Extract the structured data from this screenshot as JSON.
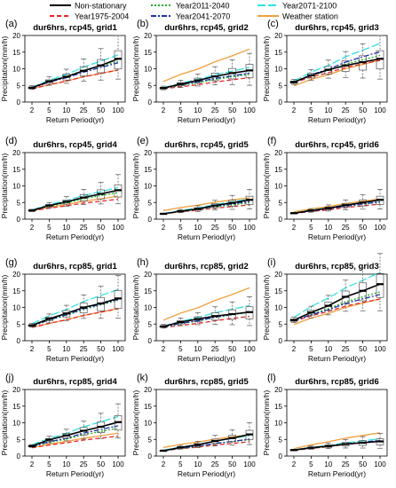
{
  "legend": [
    {
      "name": "Non-stationary",
      "color": "#000000",
      "dash": "solid"
    },
    {
      "name": "Year1975-2004",
      "color": "#e8252a",
      "dash": "dashed"
    },
    {
      "name": "Year2011-2040",
      "color": "#1fb21f",
      "dash": "dotted"
    },
    {
      "name": "Year2041-2070",
      "color": "#1a2fb0",
      "dash": "dashdot"
    },
    {
      "name": "Year2071-2100",
      "color": "#33e0e0",
      "dash": "longdash"
    },
    {
      "name": "Weather station",
      "color": "#f0a040",
      "dash": "solid"
    }
  ],
  "chart_data": [
    {
      "type": "line",
      "letter": "(a)",
      "title": "dur6hrs, rcp45, grid1",
      "xlabel": "Return Period(yr)",
      "ylabel": "Precipitation(mm/h)",
      "categories": [
        "2",
        "5",
        "10",
        "25",
        "50",
        "100"
      ],
      "ylim": [
        0,
        20
      ],
      "yticks": [
        0,
        5,
        10,
        15,
        20
      ],
      "series": [
        {
          "name": "Non-stationary",
          "values": [
            4.3,
            6.2,
            7.6,
            9.4,
            11.0,
            13.0
          ]
        },
        {
          "name": "Year1975-2004",
          "values": [
            4.0,
            5.2,
            6.3,
            7.6,
            8.6,
            9.6
          ]
        },
        {
          "name": "Year2011-2040",
          "values": [
            4.2,
            6.3,
            7.7,
            9.5,
            10.9,
            12.2
          ]
        },
        {
          "name": "Year2041-2070",
          "values": [
            4.2,
            6.0,
            7.3,
            9.0,
            10.4,
            11.8
          ]
        },
        {
          "name": "Year2071-2100",
          "values": [
            4.4,
            6.6,
            8.3,
            10.5,
            12.3,
            14.2
          ]
        },
        {
          "name": "Weather station",
          "values": [
            4.0,
            5.2,
            6.3,
            7.6,
            8.6,
            9.7
          ]
        }
      ]
    },
    {
      "type": "line",
      "letter": "(b)",
      "title": "dur6hrs, rcp45, grid2",
      "xlabel": "Return Period(yr)",
      "ylabel": "Precipitation(mm/h)",
      "categories": [
        "2",
        "5",
        "10",
        "25",
        "50",
        "100"
      ],
      "ylim": [
        0,
        20
      ],
      "yticks": [
        0,
        5,
        10,
        15,
        20
      ],
      "series": [
        {
          "name": "Non-stationary",
          "values": [
            4.2,
            5.4,
            6.5,
            7.7,
            8.7,
            9.5
          ]
        },
        {
          "name": "Year1975-2004",
          "values": [
            4.0,
            4.6,
            5.2,
            6.0,
            6.7,
            7.3
          ]
        },
        {
          "name": "Year2011-2040",
          "values": [
            4.1,
            5.0,
            5.8,
            6.8,
            7.6,
            8.3
          ]
        },
        {
          "name": "Year2041-2070",
          "values": [
            4.1,
            5.2,
            6.1,
            7.1,
            7.9,
            8.7
          ]
        },
        {
          "name": "Year2071-2100",
          "values": [
            4.3,
            5.6,
            6.8,
            8.2,
            9.3,
            10.4
          ]
        },
        {
          "name": "Weather station",
          "values": [
            6.2,
            8.3,
            9.9,
            12.1,
            13.9,
            15.9
          ]
        }
      ]
    },
    {
      "type": "line",
      "letter": "(c)",
      "title": "dur6hrs, rcp45, grid3",
      "xlabel": "Return Period(yr)",
      "ylabel": "Precipitation(mm/h)",
      "categories": [
        "2",
        "5",
        "10",
        "25",
        "50",
        "100"
      ],
      "ylim": [
        0,
        20
      ],
      "yticks": [
        0,
        5,
        10,
        15,
        20
      ],
      "series": [
        {
          "name": "Non-stationary",
          "values": [
            6.0,
            8.0,
            9.7,
            11.0,
            12.0,
            13.0
          ]
        },
        {
          "name": "Year1975-2004",
          "values": [
            5.8,
            7.5,
            8.8,
            10.4,
            11.5,
            12.5
          ]
        },
        {
          "name": "Year2011-2040",
          "values": [
            6.0,
            8.0,
            9.5,
            11.4,
            12.7,
            14.0
          ]
        },
        {
          "name": "Year2041-2070",
          "values": [
            6.0,
            8.2,
            9.9,
            12.0,
            13.6,
            15.1
          ]
        },
        {
          "name": "Year2071-2100",
          "values": [
            6.3,
            9.0,
            11.0,
            13.6,
            15.6,
            17.6
          ]
        },
        {
          "name": "Weather station",
          "values": [
            4.9,
            6.8,
            8.2,
            10.0,
            11.3,
            12.6
          ]
        }
      ]
    },
    {
      "type": "line",
      "letter": "(d)",
      "title": "dur6hrs, rcp45, grid4",
      "xlabel": "Return Period(yr)",
      "ylabel": "Precipitation(mm/h)",
      "categories": [
        "2",
        "5",
        "10",
        "25",
        "50",
        "100"
      ],
      "ylim": [
        0,
        20
      ],
      "yticks": [
        0,
        5,
        10,
        15,
        20
      ],
      "series": [
        {
          "name": "Non-stationary",
          "values": [
            2.6,
            4.1,
            5.2,
            6.5,
            7.6,
            8.7
          ]
        },
        {
          "name": "Year1975-2004",
          "values": [
            2.5,
            3.3,
            4.0,
            4.8,
            5.4,
            6.0
          ]
        },
        {
          "name": "Year2011-2040",
          "values": [
            2.7,
            3.9,
            4.9,
            6.1,
            7.1,
            8.0
          ]
        },
        {
          "name": "Year2041-2070",
          "values": [
            2.7,
            4.1,
            5.2,
            6.6,
            7.6,
            8.7
          ]
        },
        {
          "name": "Year2071-2100",
          "values": [
            2.8,
            4.4,
            5.6,
            7.1,
            8.3,
            9.5
          ]
        },
        {
          "name": "Weather station",
          "values": [
            2.5,
            3.6,
            4.4,
            5.4,
            6.1,
            6.9
          ]
        }
      ]
    },
    {
      "type": "line",
      "letter": "(e)",
      "title": "dur6hrs, rcp45, grid5",
      "xlabel": "Return Period(yr)",
      "ylabel": "Precipitation(mm/h)",
      "categories": [
        "2",
        "5",
        "10",
        "25",
        "50",
        "100"
      ],
      "ylim": [
        0,
        20
      ],
      "yticks": [
        0,
        5,
        10,
        15,
        20
      ],
      "series": [
        {
          "name": "Non-stationary",
          "values": [
            1.6,
            2.4,
            3.1,
            4.1,
            4.9,
            5.8
          ]
        },
        {
          "name": "Year1975-2004",
          "values": [
            1.6,
            2.2,
            2.7,
            3.3,
            3.8,
            4.3
          ]
        },
        {
          "name": "Year2011-2040",
          "values": [
            1.6,
            2.3,
            2.9,
            3.7,
            4.3,
            4.9
          ]
        },
        {
          "name": "Year2041-2070",
          "values": [
            1.6,
            2.4,
            3.0,
            3.9,
            4.6,
            5.3
          ]
        },
        {
          "name": "Year2071-2100",
          "values": [
            1.7,
            2.6,
            3.4,
            4.4,
            5.2,
            6.0
          ]
        },
        {
          "name": "Weather station",
          "values": [
            2.6,
            3.5,
            4.2,
            5.1,
            5.8,
            6.4
          ]
        }
      ]
    },
    {
      "type": "line",
      "letter": "(f)",
      "title": "dur6hrs, rcp45, grid6",
      "xlabel": "Return Period(yr)",
      "ylabel": "Precipitation(mm/h)",
      "categories": [
        "2",
        "5",
        "10",
        "25",
        "50",
        "100"
      ],
      "ylim": [
        0,
        20
      ],
      "yticks": [
        0,
        5,
        10,
        15,
        20
      ],
      "series": [
        {
          "name": "Non-stationary",
          "values": [
            1.8,
            2.6,
            3.3,
            4.2,
            5.0,
            5.8
          ]
        },
        {
          "name": "Year1975-2004",
          "values": [
            1.7,
            2.3,
            2.8,
            3.5,
            4.0,
            4.5
          ]
        },
        {
          "name": "Year2011-2040",
          "values": [
            1.8,
            2.5,
            3.1,
            3.9,
            4.5,
            5.1
          ]
        },
        {
          "name": "Year2041-2070",
          "values": [
            1.8,
            2.5,
            3.1,
            3.9,
            4.6,
            5.2
          ]
        },
        {
          "name": "Year2071-2100",
          "values": [
            1.9,
            2.7,
            3.4,
            4.3,
            5.0,
            5.7
          ]
        },
        {
          "name": "Weather station",
          "values": [
            2.2,
            3.1,
            3.8,
            4.7,
            5.4,
            6.1
          ]
        }
      ]
    },
    {
      "type": "line",
      "letter": "(g)",
      "title": "dur6hrs, rcp85, grid1",
      "xlabel": "Return Period(yr)",
      "ylabel": "Precipitation(mm/h)",
      "categories": [
        "2",
        "5",
        "10",
        "25",
        "50",
        "100"
      ],
      "ylim": [
        0,
        20
      ],
      "yticks": [
        0,
        5,
        10,
        15,
        20
      ],
      "series": [
        {
          "name": "Non-stationary",
          "values": [
            4.6,
            6.6,
            8.2,
            10.0,
            11.2,
            12.7
          ]
        },
        {
          "name": "Year1975-2004",
          "values": [
            4.0,
            5.2,
            6.3,
            7.6,
            8.6,
            9.6
          ]
        },
        {
          "name": "Year2011-2040",
          "values": [
            4.3,
            6.2,
            7.6,
            9.4,
            10.8,
            12.1
          ]
        },
        {
          "name": "Year2041-2070",
          "values": [
            4.4,
            6.3,
            7.8,
            9.6,
            11.0,
            12.4
          ]
        },
        {
          "name": "Year2071-2100",
          "values": [
            5.1,
            7.5,
            9.4,
            11.8,
            13.6,
            15.4
          ]
        },
        {
          "name": "Weather station",
          "values": [
            4.0,
            5.2,
            6.3,
            7.6,
            8.6,
            9.7
          ]
        }
      ]
    },
    {
      "type": "line",
      "letter": "(h)",
      "title": "dur6hrs, rcp85, grid2",
      "xlabel": "Return Period(yr)",
      "ylabel": "Precipitation(mm/h)",
      "categories": [
        "2",
        "5",
        "10",
        "25",
        "50",
        "100"
      ],
      "ylim": [
        0,
        20
      ],
      "yticks": [
        0,
        5,
        10,
        15,
        20
      ],
      "series": [
        {
          "name": "Non-stationary",
          "values": [
            4.3,
            5.6,
            6.5,
            7.4,
            8.0,
            8.6
          ]
        },
        {
          "name": "Year1975-2004",
          "values": [
            4.0,
            4.6,
            5.2,
            6.0,
            6.7,
            7.3
          ]
        },
        {
          "name": "Year2011-2040",
          "values": [
            4.1,
            5.1,
            5.9,
            7.0,
            7.8,
            8.6
          ]
        },
        {
          "name": "Year2041-2070",
          "values": [
            4.1,
            5.2,
            6.0,
            7.1,
            7.9,
            8.7
          ]
        },
        {
          "name": "Year2071-2100",
          "values": [
            4.4,
            5.8,
            7.0,
            8.4,
            9.5,
            10.6
          ]
        },
        {
          "name": "Weather station",
          "values": [
            6.2,
            8.3,
            9.9,
            12.1,
            13.9,
            15.9
          ]
        }
      ]
    },
    {
      "type": "line",
      "letter": "(i)",
      "title": "dur6hrs, rcp85, grid3",
      "xlabel": "Return Period(yr)",
      "ylabel": "Precipitation(mm/h)",
      "categories": [
        "2",
        "5",
        "10",
        "25",
        "50",
        "100"
      ],
      "ylim": [
        0,
        20
      ],
      "yticks": [
        0,
        5,
        10,
        15,
        20
      ],
      "series": [
        {
          "name": "Non-stationary",
          "values": [
            6.2,
            8.5,
            10.5,
            13.2,
            15.0,
            17.0
          ]
        },
        {
          "name": "Year1975-2004",
          "values": [
            5.8,
            7.5,
            8.8,
            10.4,
            11.5,
            12.5
          ]
        },
        {
          "name": "Year2011-2040",
          "values": [
            6.0,
            8.0,
            9.6,
            11.7,
            13.2,
            14.7
          ]
        },
        {
          "name": "Year2041-2070",
          "values": [
            6.0,
            7.8,
            9.3,
            11.2,
            12.6,
            13.9
          ]
        },
        {
          "name": "Year2071-2100",
          "values": [
            7.0,
            10.3,
            12.8,
            15.9,
            18.2,
            20.5
          ]
        },
        {
          "name": "Weather station",
          "values": [
            4.9,
            6.8,
            8.2,
            10.0,
            11.3,
            12.6
          ]
        }
      ]
    },
    {
      "type": "line",
      "letter": "(j)",
      "title": "dur6hrs, rcp85, grid4",
      "xlabel": "Return Period(yr)",
      "ylabel": "Precipitation(mm/h)",
      "categories": [
        "2",
        "5",
        "10",
        "25",
        "50",
        "100"
      ],
      "ylim": [
        0,
        20
      ],
      "yticks": [
        0,
        5,
        10,
        15,
        20
      ],
      "series": [
        {
          "name": "Non-stationary",
          "values": [
            3.0,
            4.9,
            6.2,
            7.6,
            8.8,
            10.2
          ]
        },
        {
          "name": "Year1975-2004",
          "values": [
            2.5,
            3.3,
            4.0,
            4.8,
            5.4,
            6.0
          ]
        },
        {
          "name": "Year2011-2040",
          "values": [
            2.8,
            4.1,
            5.1,
            6.4,
            7.4,
            8.4
          ]
        },
        {
          "name": "Year2041-2070",
          "values": [
            2.9,
            4.3,
            5.4,
            6.9,
            8.0,
            9.1
          ]
        },
        {
          "name": "Year2071-2100",
          "values": [
            3.4,
            5.3,
            6.8,
            8.8,
            10.3,
            11.9
          ]
        },
        {
          "name": "Weather station",
          "values": [
            2.5,
            3.6,
            4.4,
            5.4,
            6.1,
            6.9
          ]
        }
      ]
    },
    {
      "type": "line",
      "letter": "(k)",
      "title": "dur6hrs, rcp85, grid5",
      "xlabel": "Return Period(yr)",
      "ylabel": "Precipitation(mm/h)",
      "categories": [
        "2",
        "5",
        "10",
        "25",
        "50",
        "100"
      ],
      "ylim": [
        0,
        20
      ],
      "yticks": [
        0,
        5,
        10,
        15,
        20
      ],
      "series": [
        {
          "name": "Non-stationary",
          "values": [
            1.6,
            2.6,
            3.4,
            4.5,
            5.4,
            6.5
          ]
        },
        {
          "name": "Year1975-2004",
          "values": [
            1.6,
            2.2,
            2.7,
            3.3,
            3.8,
            4.3
          ]
        },
        {
          "name": "Year2011-2040",
          "values": [
            1.6,
            2.3,
            2.9,
            3.7,
            4.3,
            4.9
          ]
        },
        {
          "name": "Year2041-2070",
          "values": [
            1.6,
            2.4,
            3.0,
            3.8,
            4.4,
            5.1
          ]
        },
        {
          "name": "Year2071-2100",
          "values": [
            1.8,
            2.7,
            3.5,
            4.5,
            5.3,
            6.1
          ]
        },
        {
          "name": "Weather station",
          "values": [
            2.6,
            3.5,
            4.2,
            5.1,
            5.8,
            6.4
          ]
        }
      ]
    },
    {
      "type": "line",
      "letter": "(l)",
      "title": "dur6hrs, rcp85, grid6",
      "xlabel": "Return Period(yr)",
      "ylabel": "Precipitation(mm/h)",
      "categories": [
        "2",
        "5",
        "10",
        "25",
        "50",
        "100"
      ],
      "ylim": [
        0,
        20
      ],
      "yticks": [
        0,
        5,
        10,
        15,
        20
      ],
      "series": [
        {
          "name": "Non-stationary",
          "values": [
            1.8,
            2.5,
            3.0,
            3.6,
            4.0,
            4.4
          ]
        },
        {
          "name": "Year1975-2004",
          "values": [
            1.7,
            2.3,
            2.8,
            3.5,
            4.0,
            4.5
          ]
        },
        {
          "name": "Year2011-2040",
          "values": [
            1.8,
            2.4,
            2.9,
            3.6,
            4.1,
            4.6
          ]
        },
        {
          "name": "Year2041-2070",
          "values": [
            1.8,
            2.4,
            3.0,
            3.7,
            4.2,
            4.7
          ]
        },
        {
          "name": "Year2071-2100",
          "values": [
            1.9,
            2.6,
            3.2,
            4.0,
            4.6,
            5.2
          ]
        },
        {
          "name": "Weather station",
          "values": [
            2.2,
            3.4,
            4.3,
            5.4,
            6.2,
            7.0
          ]
        }
      ]
    }
  ]
}
